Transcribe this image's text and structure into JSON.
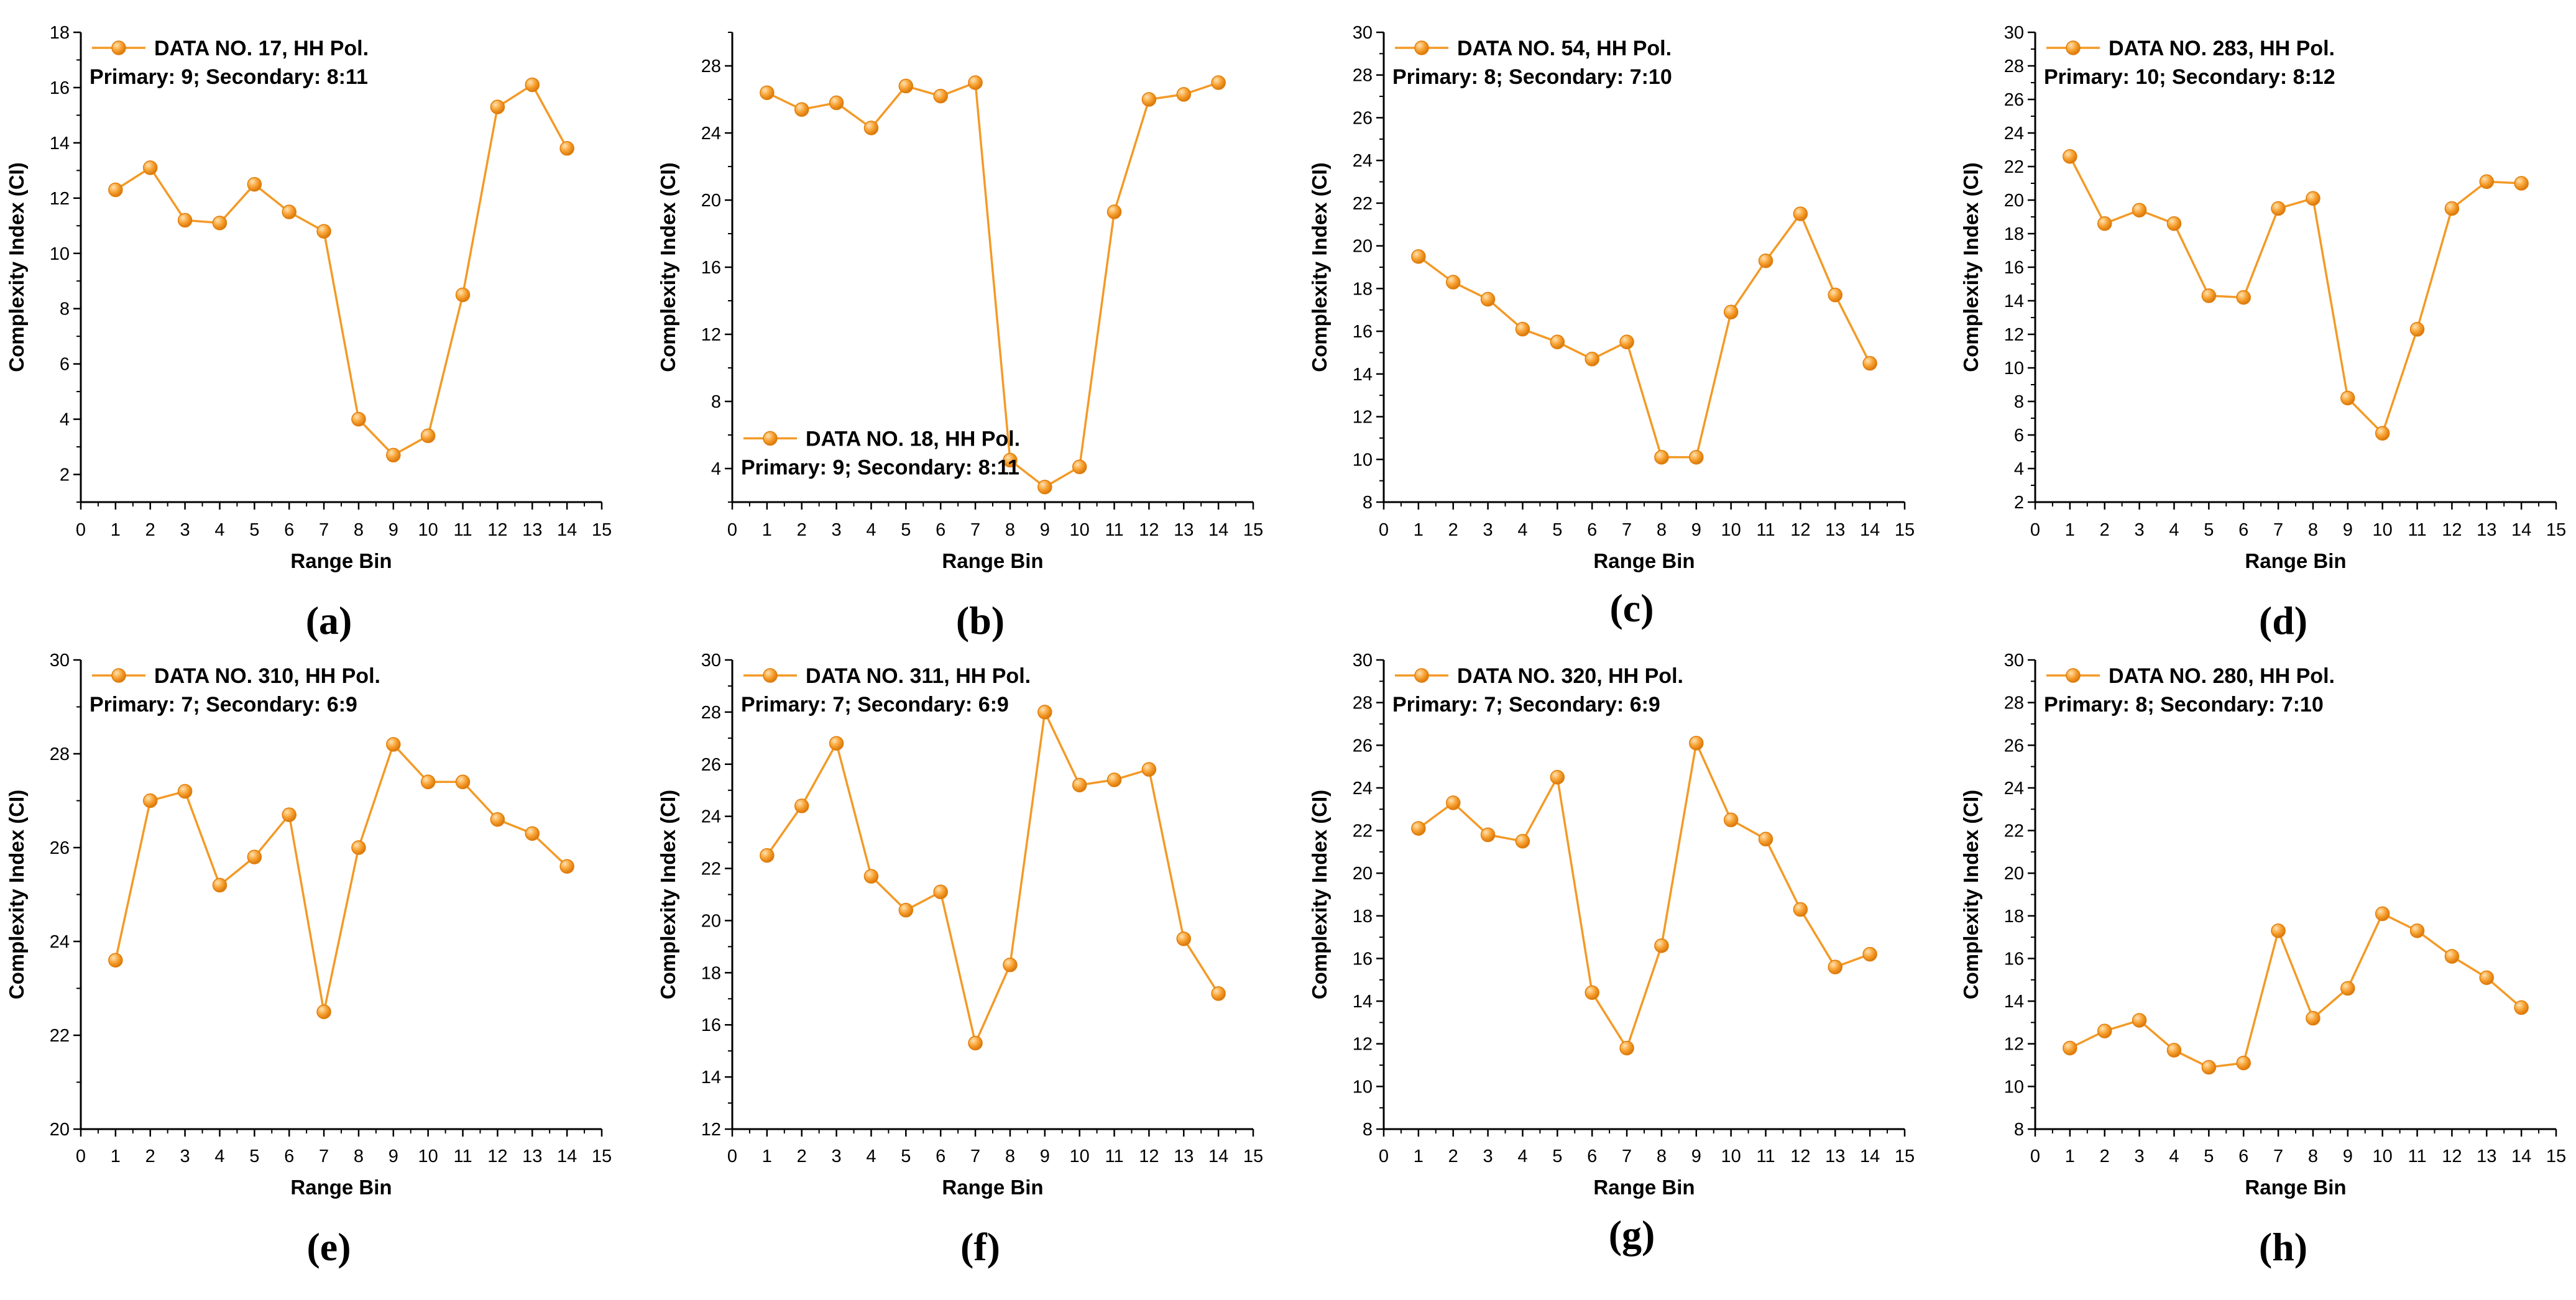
{
  "colors": {
    "series": "#f39a27",
    "marker_light": "#ffd79a",
    "marker_dark": "#e07d0a",
    "axis": "#000000"
  },
  "chart_data": [
    {
      "type": "line",
      "panel_label": "(a)",
      "legend": "DATA NO. 17, HH Pol.",
      "note": "Primary: 9; Secondary: 8:11",
      "legend_position": "top-left",
      "xlabel": "Range Bin",
      "ylabel": "Complexity Index (CI)",
      "xlim": [
        0,
        15
      ],
      "ylim": [
        1,
        18
      ],
      "yticks": [
        2,
        4,
        6,
        8,
        10,
        12,
        14,
        16,
        18
      ],
      "x": [
        1,
        2,
        3,
        4,
        5,
        6,
        7,
        8,
        9,
        10,
        11,
        12,
        13,
        14
      ],
      "values": [
        12.3,
        13.1,
        11.2,
        11.1,
        12.5,
        11.5,
        10.8,
        4.0,
        2.7,
        3.4,
        8.5,
        15.3,
        16.1,
        13.8
      ]
    },
    {
      "type": "line",
      "panel_label": "(b)",
      "legend": "DATA NO. 18, HH Pol.",
      "note": "Primary: 9; Secondary: 8:11",
      "legend_position": "bottom-left",
      "xlabel": "Range Bin",
      "ylabel": "Complexity Index (CI)",
      "xlim": [
        0,
        15
      ],
      "ylim": [
        2,
        30
      ],
      "yticks": [
        4,
        8,
        12,
        16,
        20,
        24,
        28
      ],
      "x": [
        1,
        2,
        3,
        4,
        5,
        6,
        7,
        8,
        9,
        10,
        11,
        12,
        13,
        14
      ],
      "values": [
        26.4,
        25.4,
        25.8,
        24.3,
        26.8,
        26.2,
        27.0,
        4.5,
        2.9,
        4.1,
        19.3,
        26.0,
        26.3,
        27.0
      ]
    },
    {
      "type": "line",
      "panel_label": "(c)",
      "legend": "DATA NO. 54, HH Pol.",
      "note": "Primary: 8; Secondary: 7:10",
      "legend_position": "top-left",
      "xlabel": "Range Bin",
      "ylabel": "Complexity Index (CI)",
      "xlim": [
        0,
        15
      ],
      "ylim": [
        8,
        30
      ],
      "yticks": [
        8,
        10,
        12,
        14,
        16,
        18,
        20,
        22,
        24,
        26,
        28,
        30
      ],
      "x": [
        1,
        2,
        3,
        4,
        5,
        6,
        7,
        8,
        9,
        10,
        11,
        12,
        13,
        14
      ],
      "values": [
        19.5,
        18.3,
        17.5,
        16.1,
        15.5,
        14.7,
        15.5,
        10.1,
        10.1,
        16.9,
        19.3,
        21.5,
        17.7,
        14.5
      ]
    },
    {
      "type": "line",
      "panel_label": "(d)",
      "legend": "DATA NO. 283, HH Pol.",
      "note": "Primary: 10; Secondary: 8:12",
      "legend_position": "top-left",
      "xlabel": "Range Bin",
      "ylabel": "Complexity Index (CI)",
      "xlim": [
        0,
        15
      ],
      "ylim": [
        2,
        30
      ],
      "yticks": [
        2,
        4,
        6,
        8,
        10,
        12,
        14,
        16,
        18,
        20,
        22,
        24,
        26,
        28,
        30
      ],
      "x": [
        1,
        2,
        3,
        4,
        5,
        6,
        7,
        8,
        9,
        10,
        11,
        12,
        13,
        14
      ],
      "values": [
        22.6,
        18.6,
        19.4,
        18.6,
        14.3,
        14.2,
        19.5,
        20.1,
        8.2,
        6.1,
        12.3,
        19.5,
        21.1,
        21.0
      ]
    },
    {
      "type": "line",
      "panel_label": "(e)",
      "legend": "DATA NO. 310, HH Pol.",
      "note": "Primary: 7; Secondary: 6:9",
      "legend_position": "top-left",
      "xlabel": "Range Bin",
      "ylabel": "Complexity Index (CI)",
      "xlim": [
        0,
        15
      ],
      "ylim": [
        20,
        30
      ],
      "yticks": [
        20,
        22,
        24,
        26,
        28,
        30
      ],
      "x": [
        1,
        2,
        3,
        4,
        5,
        6,
        7,
        8,
        9,
        10,
        11,
        12,
        13,
        14
      ],
      "values": [
        23.6,
        27.0,
        27.2,
        25.2,
        25.8,
        26.7,
        22.5,
        26.0,
        28.2,
        27.4,
        27.4,
        26.6,
        26.3,
        25.6
      ]
    },
    {
      "type": "line",
      "panel_label": "(f)",
      "legend": "DATA NO. 311, HH Pol.",
      "note": "Primary: 7; Secondary: 6:9",
      "legend_position": "top-left",
      "xlabel": "Range Bin",
      "ylabel": "Complexity Index (CI)",
      "xlim": [
        0,
        15
      ],
      "ylim": [
        12,
        30
      ],
      "yticks": [
        12,
        14,
        16,
        18,
        20,
        22,
        24,
        26,
        28,
        30
      ],
      "x": [
        1,
        2,
        3,
        4,
        5,
        6,
        7,
        8,
        9,
        10,
        11,
        12,
        13,
        14
      ],
      "values": [
        22.5,
        24.4,
        26.8,
        21.7,
        20.4,
        21.1,
        15.3,
        18.3,
        28.0,
        25.2,
        25.4,
        25.8,
        19.3,
        17.2
      ]
    },
    {
      "type": "line",
      "panel_label": "(g)",
      "legend": "DATA NO. 320, HH Pol.",
      "note": "Primary: 7; Secondary: 6:9",
      "legend_position": "top-left",
      "xlabel": "Range Bin",
      "ylabel": "Complexity Index (CI)",
      "xlim": [
        0,
        15
      ],
      "ylim": [
        8,
        30
      ],
      "yticks": [
        8,
        10,
        12,
        14,
        16,
        18,
        20,
        22,
        24,
        26,
        28,
        30
      ],
      "x": [
        1,
        2,
        3,
        4,
        5,
        6,
        7,
        8,
        9,
        10,
        11,
        12,
        13,
        14
      ],
      "values": [
        22.1,
        23.3,
        21.8,
        21.5,
        24.5,
        14.4,
        11.8,
        16.6,
        26.1,
        22.5,
        21.6,
        18.3,
        15.6,
        16.2
      ]
    },
    {
      "type": "line",
      "panel_label": "(h)",
      "legend": "DATA NO. 280, HH Pol.",
      "note": "Primary: 8; Secondary: 7:10",
      "legend_position": "top-left",
      "xlabel": "Range Bin",
      "ylabel": "Complexity Index (CI)",
      "xlim": [
        0,
        15
      ],
      "ylim": [
        8,
        30
      ],
      "yticks": [
        8,
        10,
        12,
        14,
        16,
        18,
        20,
        22,
        24,
        26,
        28,
        30
      ],
      "x": [
        1,
        2,
        3,
        4,
        5,
        6,
        7,
        8,
        9,
        10,
        11,
        12,
        13,
        14
      ],
      "values": [
        11.8,
        12.6,
        13.1,
        11.7,
        10.9,
        11.1,
        17.3,
        13.2,
        14.6,
        18.1,
        17.3,
        16.1,
        15.1,
        13.7
      ]
    }
  ]
}
